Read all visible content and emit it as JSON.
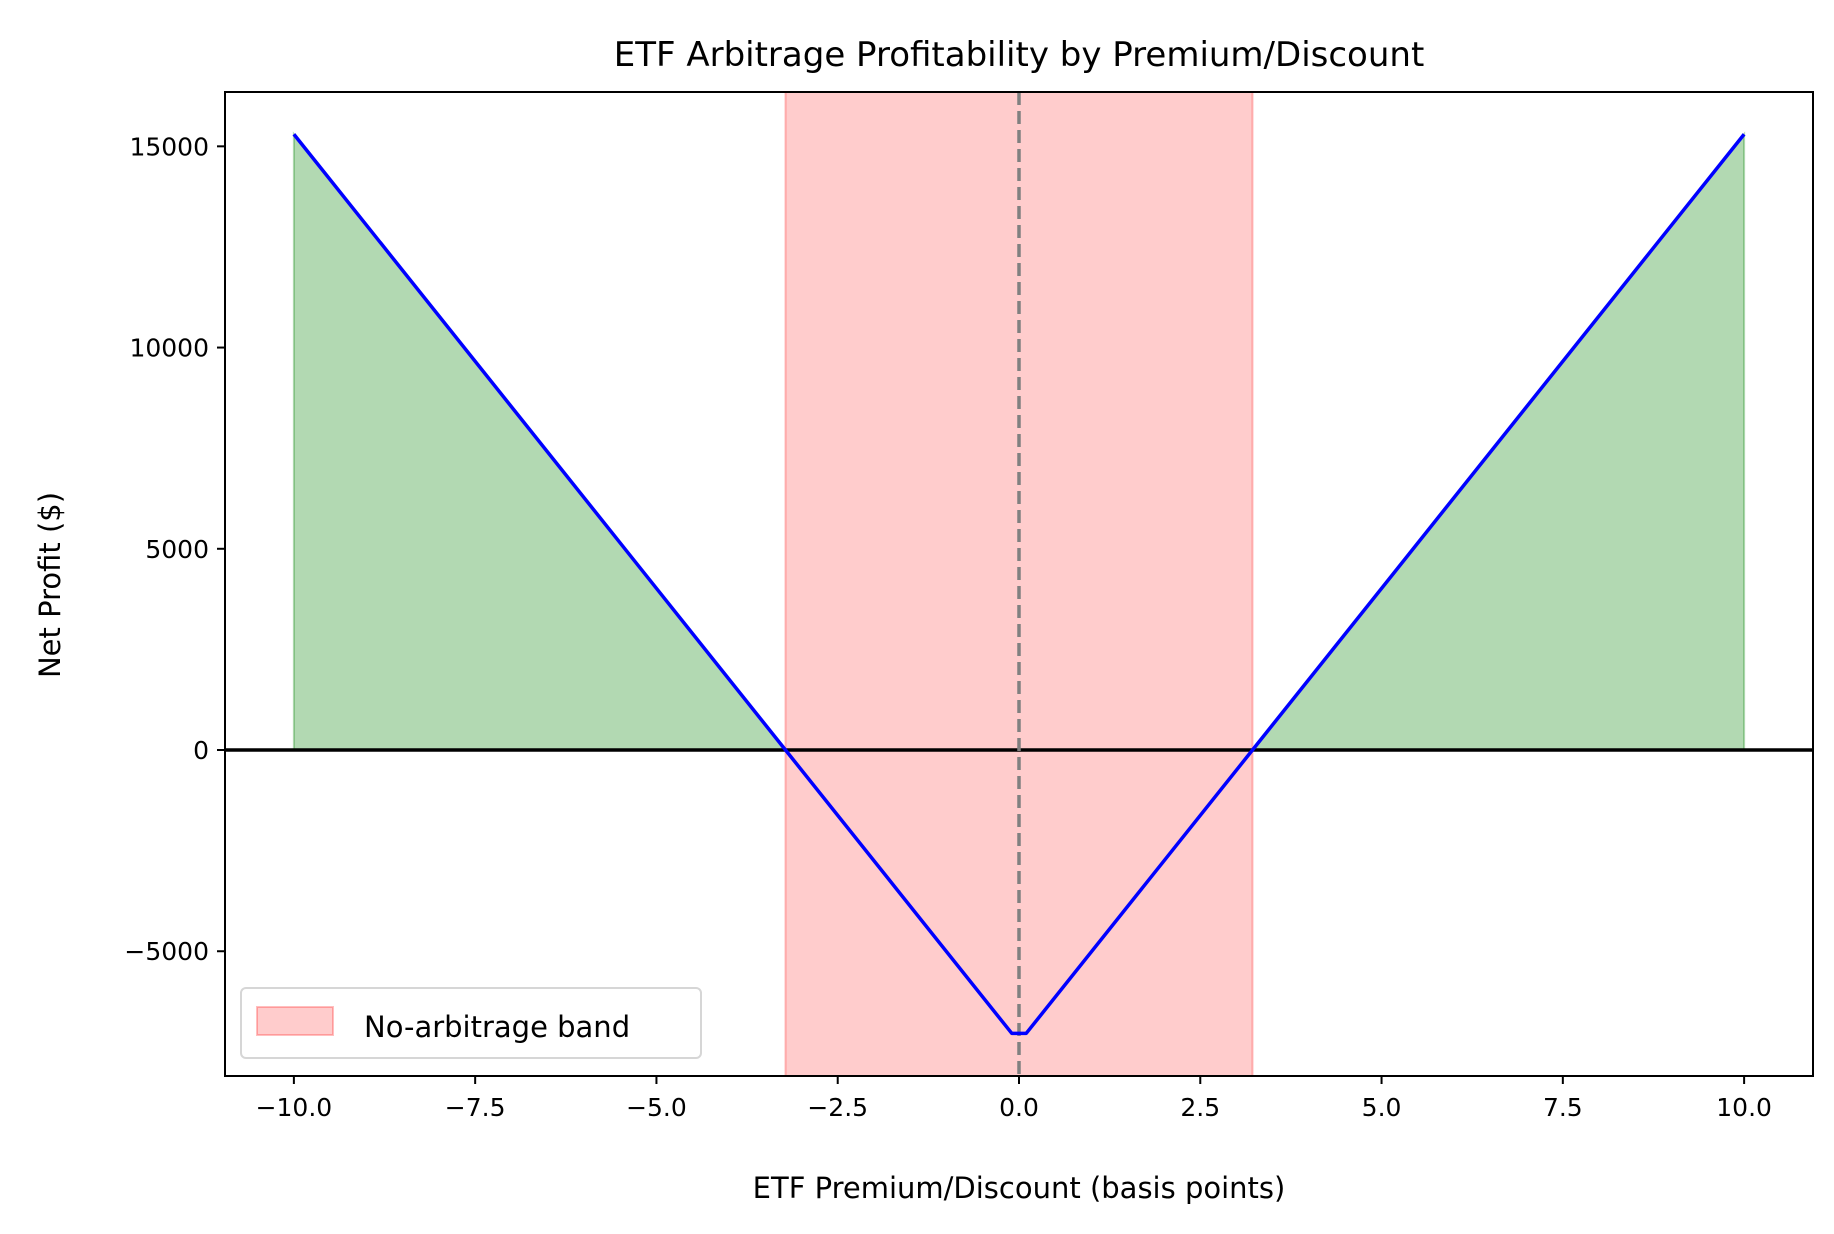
{
  "chart_data": {
    "type": "line",
    "title": "ETF Arbitrage Profitability by Premium/Discount",
    "xlabel": "ETF Premium/Discount (basis points)",
    "ylabel": "Net Profit ($)",
    "xlim": [
      -10.95,
      10.95
    ],
    "ylim": [
      -8100,
      16350
    ],
    "xticks": [
      -10.0,
      -7.5,
      -5.0,
      -2.5,
      0.0,
      2.5,
      5.0,
      7.5,
      10.0
    ],
    "xtick_labels": [
      "−10.0",
      "−7.5",
      "−5.0",
      "−2.5",
      "0.0",
      "2.5",
      "5.0",
      "7.5",
      "10.0"
    ],
    "yticks": [
      -5000,
      0,
      5000,
      10000,
      15000
    ],
    "ytick_labels": [
      "−5000",
      "0",
      "5000",
      "10000",
      "15000"
    ],
    "grid": false,
    "series": [
      {
        "x": [
          -10,
          -3.22,
          -0.1,
          0.1,
          3.22,
          10
        ],
        "y": [
          15300,
          0,
          -7040,
          -7040,
          0,
          15300
        ],
        "color": "#0000ff"
      }
    ],
    "profit_fill": {
      "color": "#008000",
      "opacity": 0.3,
      "where": "net profit > 0"
    },
    "band": {
      "name": "No-arbitrage band",
      "x_range": [
        -3.22,
        3.22
      ],
      "color": "#ff0000",
      "opacity": 0.2
    },
    "zero_line": {
      "y": 0,
      "color": "#000000"
    },
    "vline": {
      "x": 0,
      "color": "#808080",
      "style": "dashed"
    },
    "legend": {
      "entries": [
        "No-arbitrage band"
      ],
      "placement": "lower-left"
    }
  }
}
